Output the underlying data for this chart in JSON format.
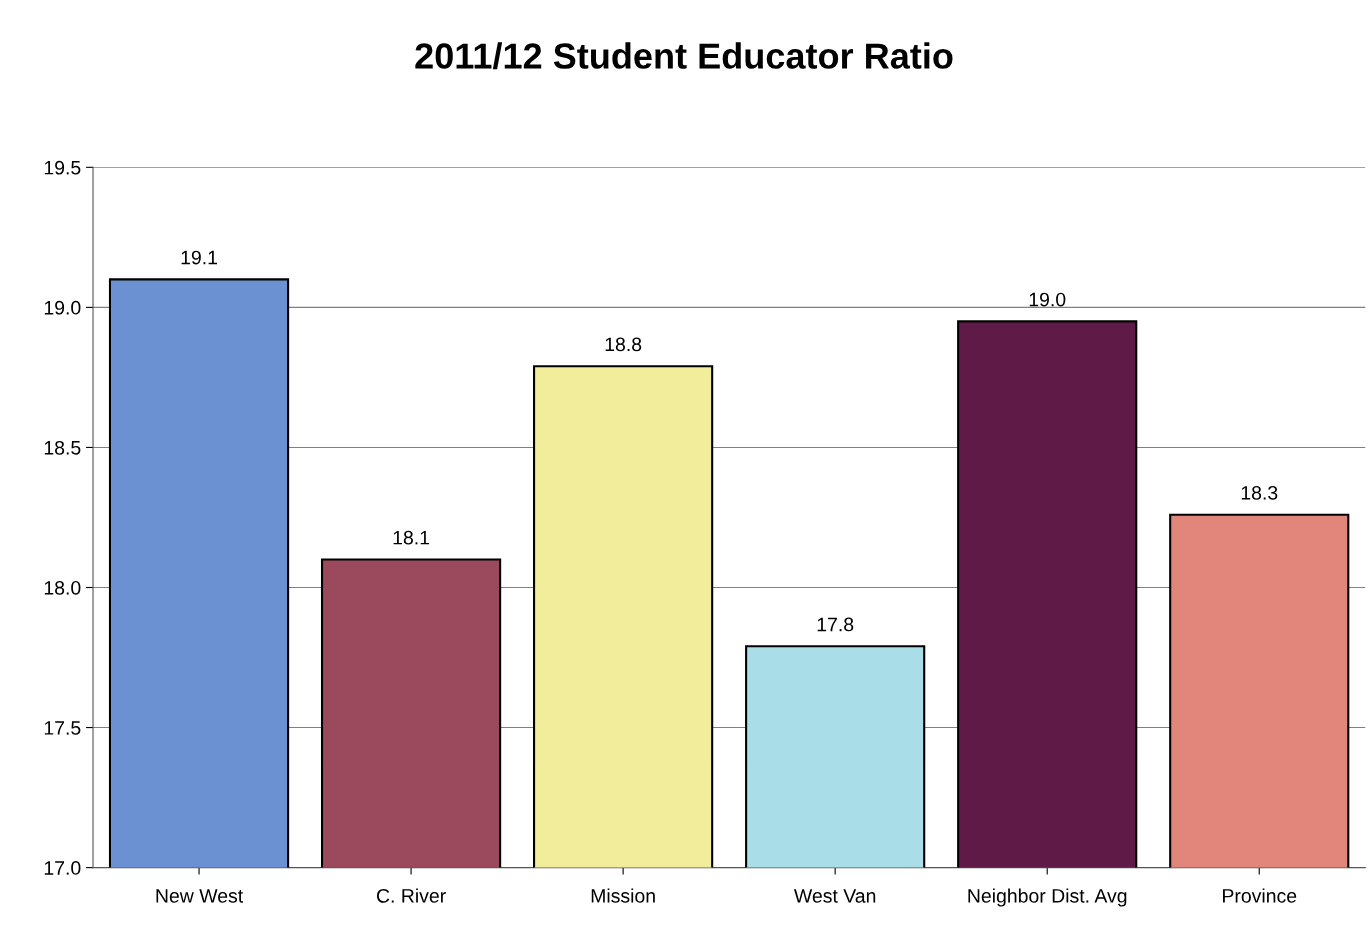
{
  "chart_data": {
    "type": "bar",
    "title": "2011/12 Student Educator Ratio",
    "categories": [
      "New West",
      "C. River",
      "Mission",
      "West Van",
      "Neighbor Dist. Avg",
      "Province"
    ],
    "values": [
      19.1,
      18.1,
      18.79,
      17.79,
      18.95,
      18.26
    ],
    "value_labels": [
      "19.1",
      "18.1",
      "18.8",
      "17.8",
      "19.0",
      "18.3"
    ],
    "colors": [
      "#6b91d2",
      "#9b4a5d",
      "#f1ed9a",
      "#a9dde7",
      "#5f1a47",
      "#e2857b"
    ],
    "ylim": [
      17.0,
      19.5
    ],
    "yticks": [
      {
        "value": 17,
        "label": "17.0"
      },
      17.5,
      {
        "value": 18,
        "label": "18.0"
      },
      18.5,
      {
        "value": 19,
        "label": "19.0"
      },
      19.5
    ],
    "grid": "y",
    "legend": false
  }
}
